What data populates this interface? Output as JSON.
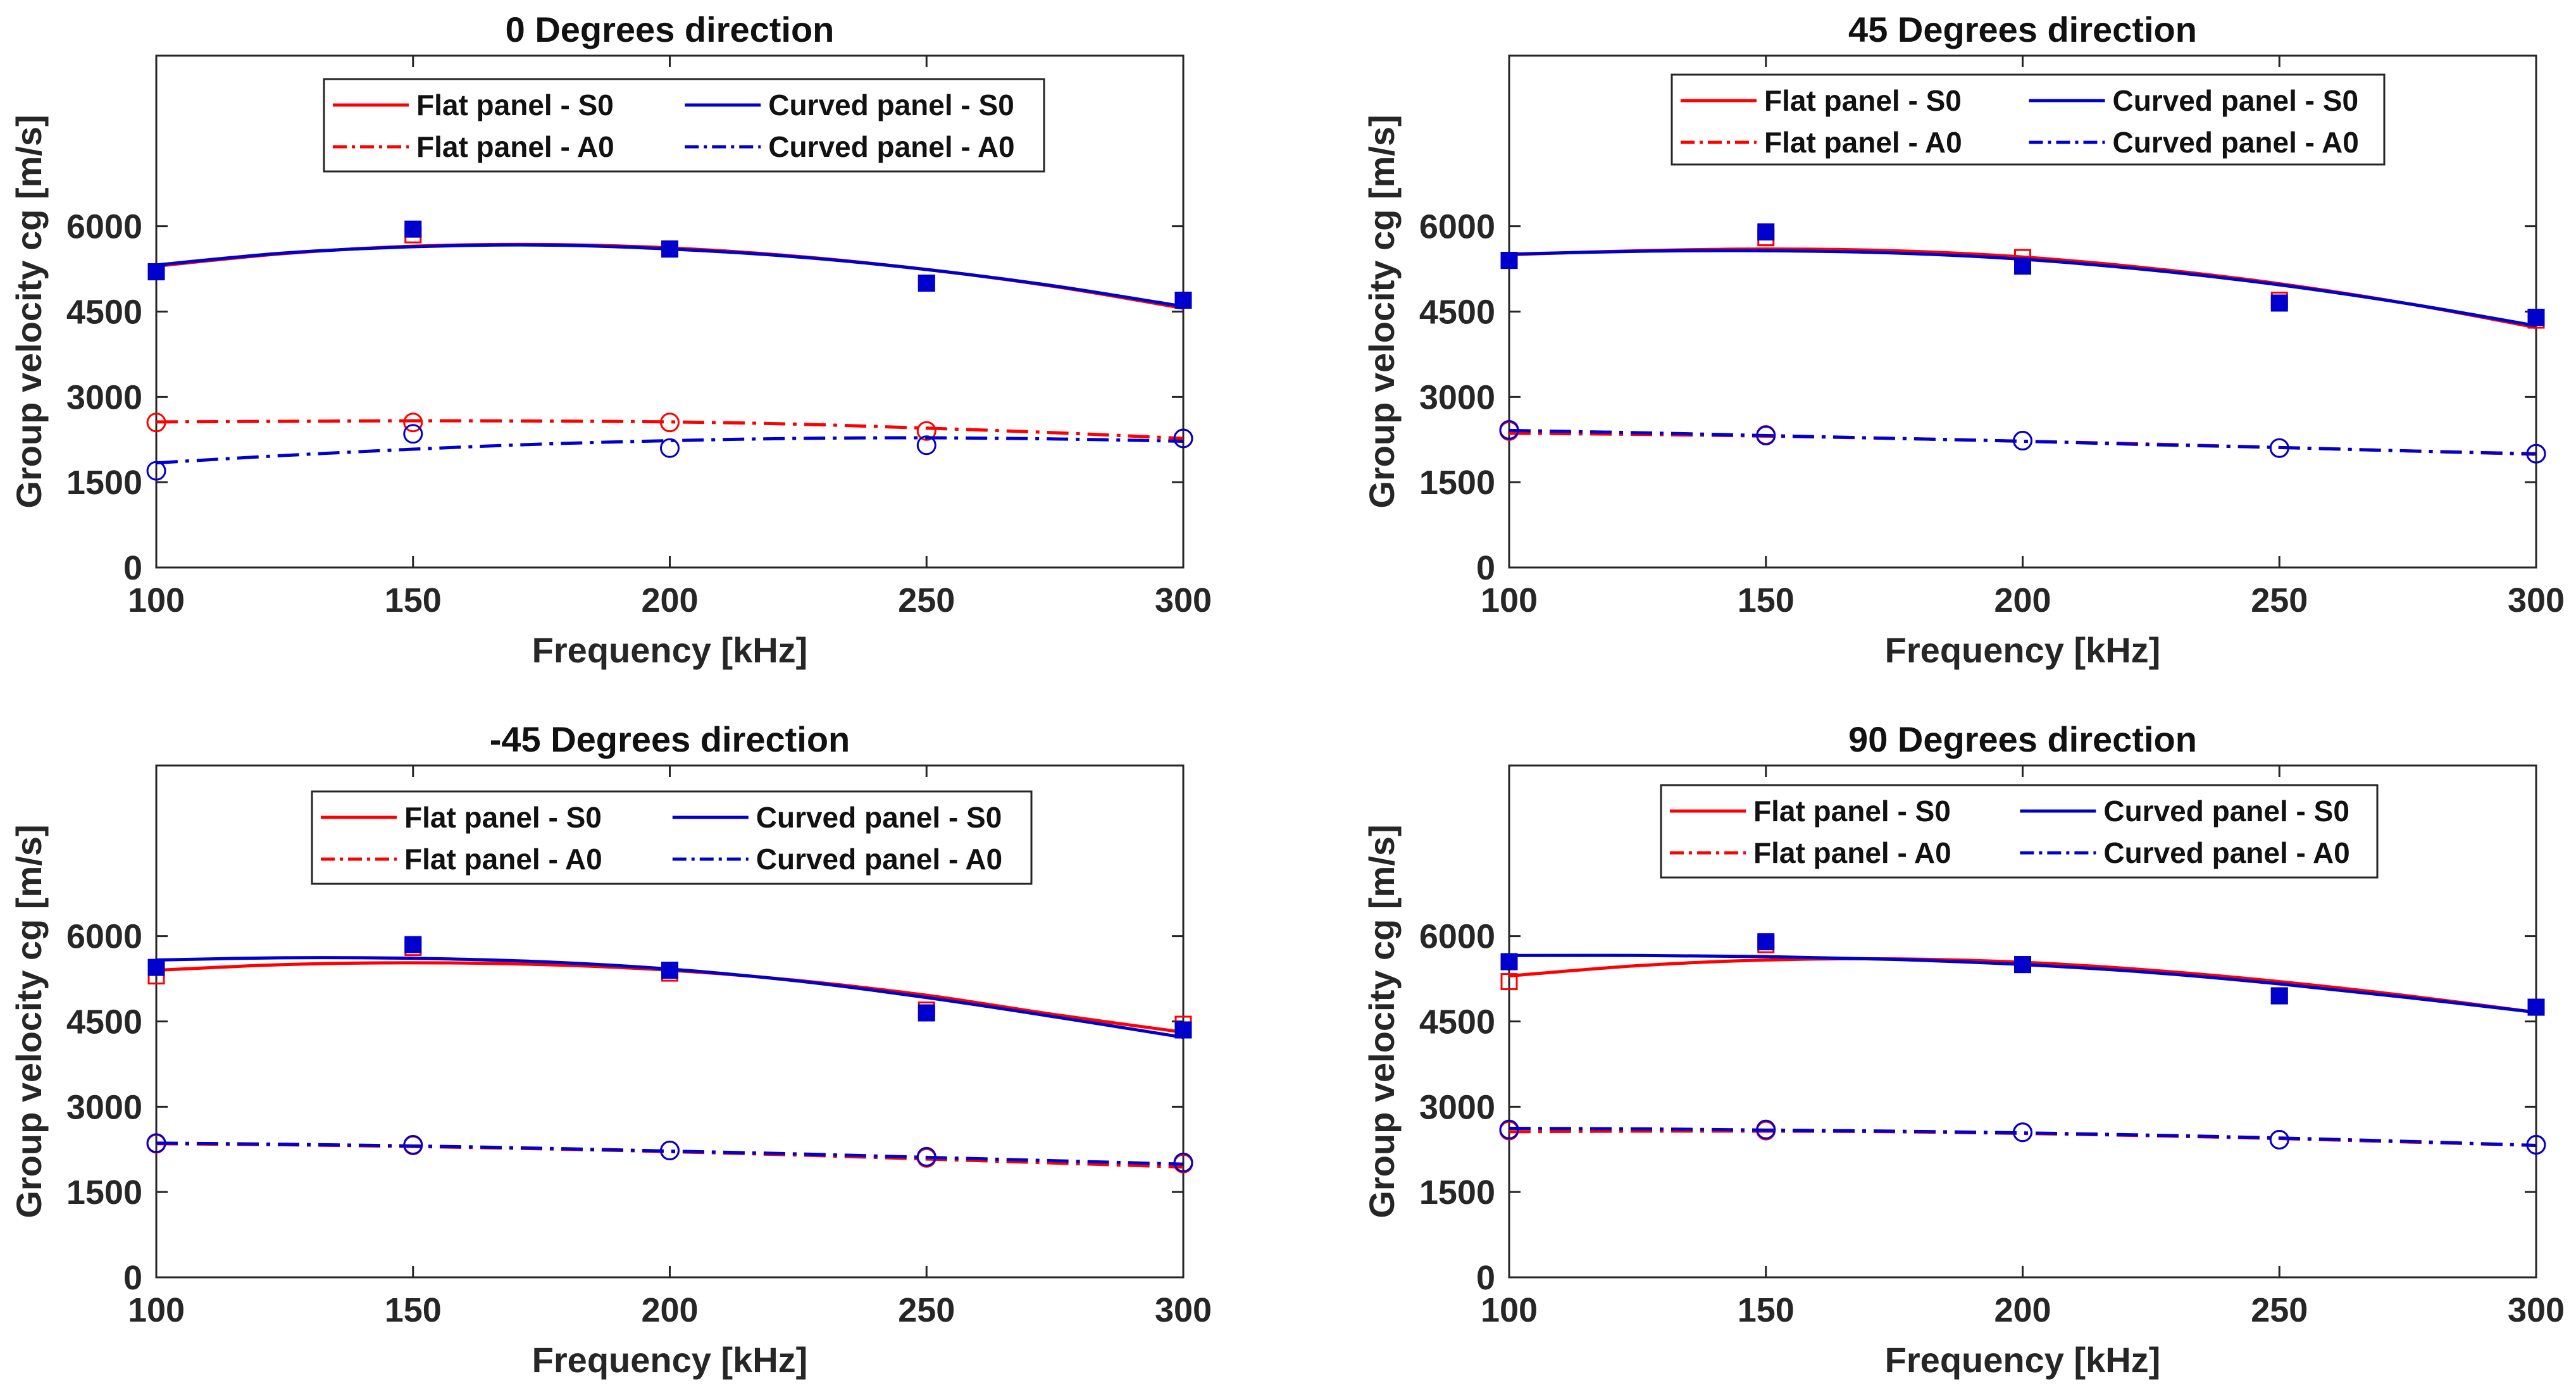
{
  "figure": {
    "colors": {
      "flat": "#ff0000",
      "curved": "#0000cd",
      "axis": "#262626",
      "background": "#ffffff"
    }
  },
  "legend_entries": [
    {
      "label": "Flat panel - S0",
      "color": "#ff0000",
      "style": "solid"
    },
    {
      "label": "Curved panel - S0",
      "color": "#0000cd",
      "style": "solid"
    },
    {
      "label": "Flat panel - A0",
      "color": "#ff0000",
      "style": "dashdot"
    },
    {
      "label": "Curved panel - A0",
      "color": "#0000cd",
      "style": "dashdot"
    }
  ],
  "chart_data": [
    {
      "type": "line",
      "title": "0 Degrees direction",
      "xlabel": "Frequency [kHz]",
      "ylabel": "Group velocity cg [m/s]",
      "xlim": [
        100,
        300
      ],
      "ylim": [
        0,
        9000
      ],
      "xticks": [
        "100",
        "150",
        "200",
        "250",
        "300"
      ],
      "yticks": [
        "0",
        "1500",
        "3000",
        "4500",
        "6000"
      ],
      "legend_position": "top-center",
      "grid": false,
      "series": [
        {
          "name": "Flat panel - S0",
          "color": "#ff0000",
          "style": "solid",
          "fit": {
            "x": [
              100,
              125,
              150,
              175,
              200,
              225,
              250,
              275,
              300
            ],
            "y": [
              5300,
              5520,
              5650,
              5680,
              5620,
              5470,
              5240,
              4940,
              4560
            ]
          },
          "markers": {
            "shape": "square-open",
            "x": [
              100,
              150,
              200,
              250,
              300
            ],
            "y": [
              5200,
              5850,
              5600,
              5000,
              4700
            ]
          }
        },
        {
          "name": "Curved panel - S0",
          "color": "#0000cd",
          "style": "solid",
          "fit": {
            "x": [
              100,
              125,
              150,
              175,
              200,
              225,
              250,
              275,
              300
            ],
            "y": [
              5320,
              5530,
              5640,
              5670,
              5600,
              5460,
              5240,
              4950,
              4590
            ]
          },
          "markers": {
            "shape": "square-filled",
            "x": [
              100,
              150,
              200,
              250,
              300
            ],
            "y": [
              5200,
              5950,
              5600,
              5000,
              4700
            ]
          }
        },
        {
          "name": "Flat panel - A0",
          "color": "#ff0000",
          "style": "dashdot",
          "fit": {
            "x": [
              100,
              125,
              150,
              175,
              200,
              225,
              250,
              275,
              300
            ],
            "y": [
              2560,
              2570,
              2580,
              2575,
              2560,
              2520,
              2450,
              2370,
              2270
            ]
          },
          "markers": {
            "shape": "circle-open",
            "x": [
              100,
              150,
              200,
              250,
              300
            ],
            "y": [
              2550,
              2550,
              2550,
              2400,
              2270
            ]
          }
        },
        {
          "name": "Curved panel - A0",
          "color": "#0000cd",
          "style": "dashdot",
          "fit": {
            "x": [
              100,
              125,
              150,
              175,
              200,
              225,
              250,
              275,
              300
            ],
            "y": [
              1840,
              1970,
              2080,
              2170,
              2230,
              2270,
              2280,
              2260,
              2220
            ]
          },
          "markers": {
            "shape": "circle-open",
            "x": [
              100,
              150,
              200,
              250,
              300
            ],
            "y": [
              1700,
              2350,
              2100,
              2150,
              2270
            ]
          }
        }
      ]
    },
    {
      "type": "line",
      "title": "45 Degrees direction",
      "xlabel": "Frequency [kHz]",
      "ylabel": "Group velocity cg [m/s]",
      "xlim": [
        100,
        300
      ],
      "ylim": [
        0,
        9000
      ],
      "xticks": [
        "100",
        "150",
        "200",
        "250",
        "300"
      ],
      "yticks": [
        "0",
        "1500",
        "3000",
        "4500",
        "6000"
      ],
      "legend_position": "top-center",
      "grid": false,
      "series": [
        {
          "name": "Flat panel - S0",
          "color": "#ff0000",
          "style": "solid",
          "fit": {
            "x": [
              100,
              125,
              150,
              175,
              200,
              225,
              250,
              275,
              300
            ],
            "y": [
              5500,
              5570,
              5600,
              5570,
              5460,
              5260,
              4990,
              4640,
              4220
            ]
          },
          "markers": {
            "shape": "square-open",
            "x": [
              100,
              150,
              200,
              250,
              300
            ],
            "y": [
              5400,
              5800,
              5450,
              4700,
              4350
            ]
          }
        },
        {
          "name": "Curved panel - S0",
          "color": "#0000cd",
          "style": "solid",
          "fit": {
            "x": [
              100,
              125,
              150,
              175,
              200,
              225,
              250,
              275,
              300
            ],
            "y": [
              5510,
              5560,
              5570,
              5530,
              5420,
              5230,
              4970,
              4640,
              4250
            ]
          },
          "markers": {
            "shape": "square-filled",
            "x": [
              100,
              150,
              200,
              250,
              300
            ],
            "y": [
              5400,
              5900,
              5300,
              4650,
              4400
            ]
          }
        },
        {
          "name": "Flat panel - A0",
          "color": "#ff0000",
          "style": "dashdot",
          "fit": {
            "x": [
              100,
              125,
              150,
              175,
              200,
              225,
              250,
              275,
              300
            ],
            "y": [
              2360,
              2340,
              2310,
              2270,
              2220,
              2170,
              2110,
              2050,
              1990
            ]
          },
          "markers": {
            "shape": "circle-open",
            "x": [
              100,
              150,
              200,
              250,
              300
            ],
            "y": [
              2400,
              2330,
              2230,
              2100,
              2000
            ]
          }
        },
        {
          "name": "Curved panel - A0",
          "color": "#0000cd",
          "style": "dashdot",
          "fit": {
            "x": [
              100,
              125,
              150,
              175,
              200,
              225,
              250,
              275,
              300
            ],
            "y": [
              2410,
              2370,
              2320,
              2270,
              2220,
              2160,
              2110,
              2050,
              2000
            ]
          },
          "markers": {
            "shape": "circle-open",
            "x": [
              100,
              150,
              200,
              250,
              300
            ],
            "y": [
              2420,
              2320,
              2230,
              2100,
              2000
            ]
          }
        }
      ]
    },
    {
      "type": "line",
      "title": "-45 Degrees direction",
      "xlabel": "Frequency [kHz]",
      "ylabel": "Group velocity cg [m/s]",
      "xlim": [
        100,
        300
      ],
      "ylim": [
        0,
        9000
      ],
      "xticks": [
        "100",
        "150",
        "200",
        "250",
        "300"
      ],
      "yticks": [
        "0",
        "1500",
        "3000",
        "4500",
        "6000"
      ],
      "legend_position": "top-center",
      "grid": false,
      "series": [
        {
          "name": "Flat panel - S0",
          "color": "#ff0000",
          "style": "solid",
          "fit": {
            "x": [
              100,
              125,
              150,
              175,
              200,
              225,
              250,
              275,
              300
            ],
            "y": [
              5400,
              5500,
              5530,
              5500,
              5400,
              5220,
              4960,
              4620,
              4310
            ]
          },
          "markers": {
            "shape": "square-open",
            "x": [
              100,
              150,
              200,
              250,
              300
            ],
            "y": [
              5300,
              5800,
              5350,
              4700,
              4450
            ]
          }
        },
        {
          "name": "Curved panel - S0",
          "color": "#0000cd",
          "style": "solid",
          "fit": {
            "x": [
              100,
              125,
              150,
              175,
              200,
              225,
              250,
              275,
              300
            ],
            "y": [
              5580,
              5620,
              5610,
              5550,
              5420,
              5210,
              4920,
              4580,
              4220
            ]
          },
          "markers": {
            "shape": "square-filled",
            "x": [
              100,
              150,
              200,
              250,
              300
            ],
            "y": [
              5450,
              5850,
              5400,
              4650,
              4350
            ]
          }
        },
        {
          "name": "Flat panel - A0",
          "color": "#ff0000",
          "style": "dashdot",
          "fit": {
            "x": [
              100,
              125,
              150,
              175,
              200,
              225,
              250,
              275,
              300
            ],
            "y": [
              2350,
              2330,
              2300,
              2260,
              2210,
              2150,
              2080,
              2010,
              1940
            ]
          },
          "markers": {
            "shape": "circle-open",
            "x": [
              100,
              150,
              200,
              250,
              300
            ],
            "y": [
              2350,
              2320,
              2230,
              2100,
              2000
            ]
          }
        },
        {
          "name": "Curved panel - A0",
          "color": "#0000cd",
          "style": "dashdot",
          "fit": {
            "x": [
              100,
              125,
              150,
              175,
              200,
              225,
              250,
              275,
              300
            ],
            "y": [
              2360,
              2340,
              2310,
              2270,
              2220,
              2170,
              2110,
              2050,
              1990
            ]
          },
          "markers": {
            "shape": "circle-open",
            "x": [
              100,
              150,
              200,
              250,
              300
            ],
            "y": [
              2360,
              2330,
              2230,
              2120,
              2020
            ]
          }
        }
      ]
    },
    {
      "type": "line",
      "title": "90 Degrees direction",
      "xlabel": "Frequency [kHz]",
      "ylabel": "Group velocity cg [m/s]",
      "xlim": [
        100,
        300
      ],
      "ylim": [
        0,
        9000
      ],
      "xticks": [
        "100",
        "150",
        "200",
        "250",
        "300"
      ],
      "yticks": [
        "0",
        "1500",
        "3000",
        "4500",
        "6000"
      ],
      "legend_position": "top-center",
      "grid": false,
      "series": [
        {
          "name": "Flat panel - S0",
          "color": "#ff0000",
          "style": "solid",
          "fit": {
            "x": [
              100,
              125,
              150,
              175,
              200,
              225,
              250,
              275,
              300
            ],
            "y": [
              5300,
              5480,
              5580,
              5600,
              5540,
              5400,
              5200,
              4950,
              4660
            ]
          },
          "markers": {
            "shape": "square-open",
            "x": [
              100,
              150,
              200,
              250,
              300
            ],
            "y": [
              5200,
              5850,
              5500,
              4950,
              4750
            ]
          }
        },
        {
          "name": "Curved panel - S0",
          "color": "#0000cd",
          "style": "solid",
          "fit": {
            "x": [
              100,
              125,
              150,
              175,
              200,
              225,
              250,
              275,
              300
            ],
            "y": [
              5660,
              5660,
              5640,
              5590,
              5500,
              5360,
              5160,
              4920,
              4660
            ]
          },
          "markers": {
            "shape": "square-filled",
            "x": [
              100,
              150,
              200,
              250,
              300
            ],
            "y": [
              5550,
              5900,
              5500,
              4950,
              4750
            ]
          }
        },
        {
          "name": "Flat panel - A0",
          "color": "#ff0000",
          "style": "dashdot",
          "fit": {
            "x": [
              100,
              125,
              150,
              175,
              200,
              225,
              250,
              275,
              300
            ],
            "y": [
              2560,
              2570,
              2570,
              2560,
              2530,
              2490,
              2440,
              2380,
              2320
            ]
          },
          "markers": {
            "shape": "circle-open",
            "x": [
              100,
              150,
              200,
              250,
              300
            ],
            "y": [
              2580,
              2580,
              2550,
              2420,
              2330
            ]
          }
        },
        {
          "name": "Curved panel - A0",
          "color": "#0000cd",
          "style": "dashdot",
          "fit": {
            "x": [
              100,
              125,
              150,
              175,
              200,
              225,
              250,
              275,
              300
            ],
            "y": [
              2620,
              2610,
              2590,
              2570,
              2540,
              2500,
              2450,
              2390,
              2320
            ]
          },
          "markers": {
            "shape": "circle-open",
            "x": [
              100,
              150,
              200,
              250,
              300
            ],
            "y": [
              2600,
              2600,
              2550,
              2420,
              2330
            ]
          }
        }
      ]
    }
  ]
}
